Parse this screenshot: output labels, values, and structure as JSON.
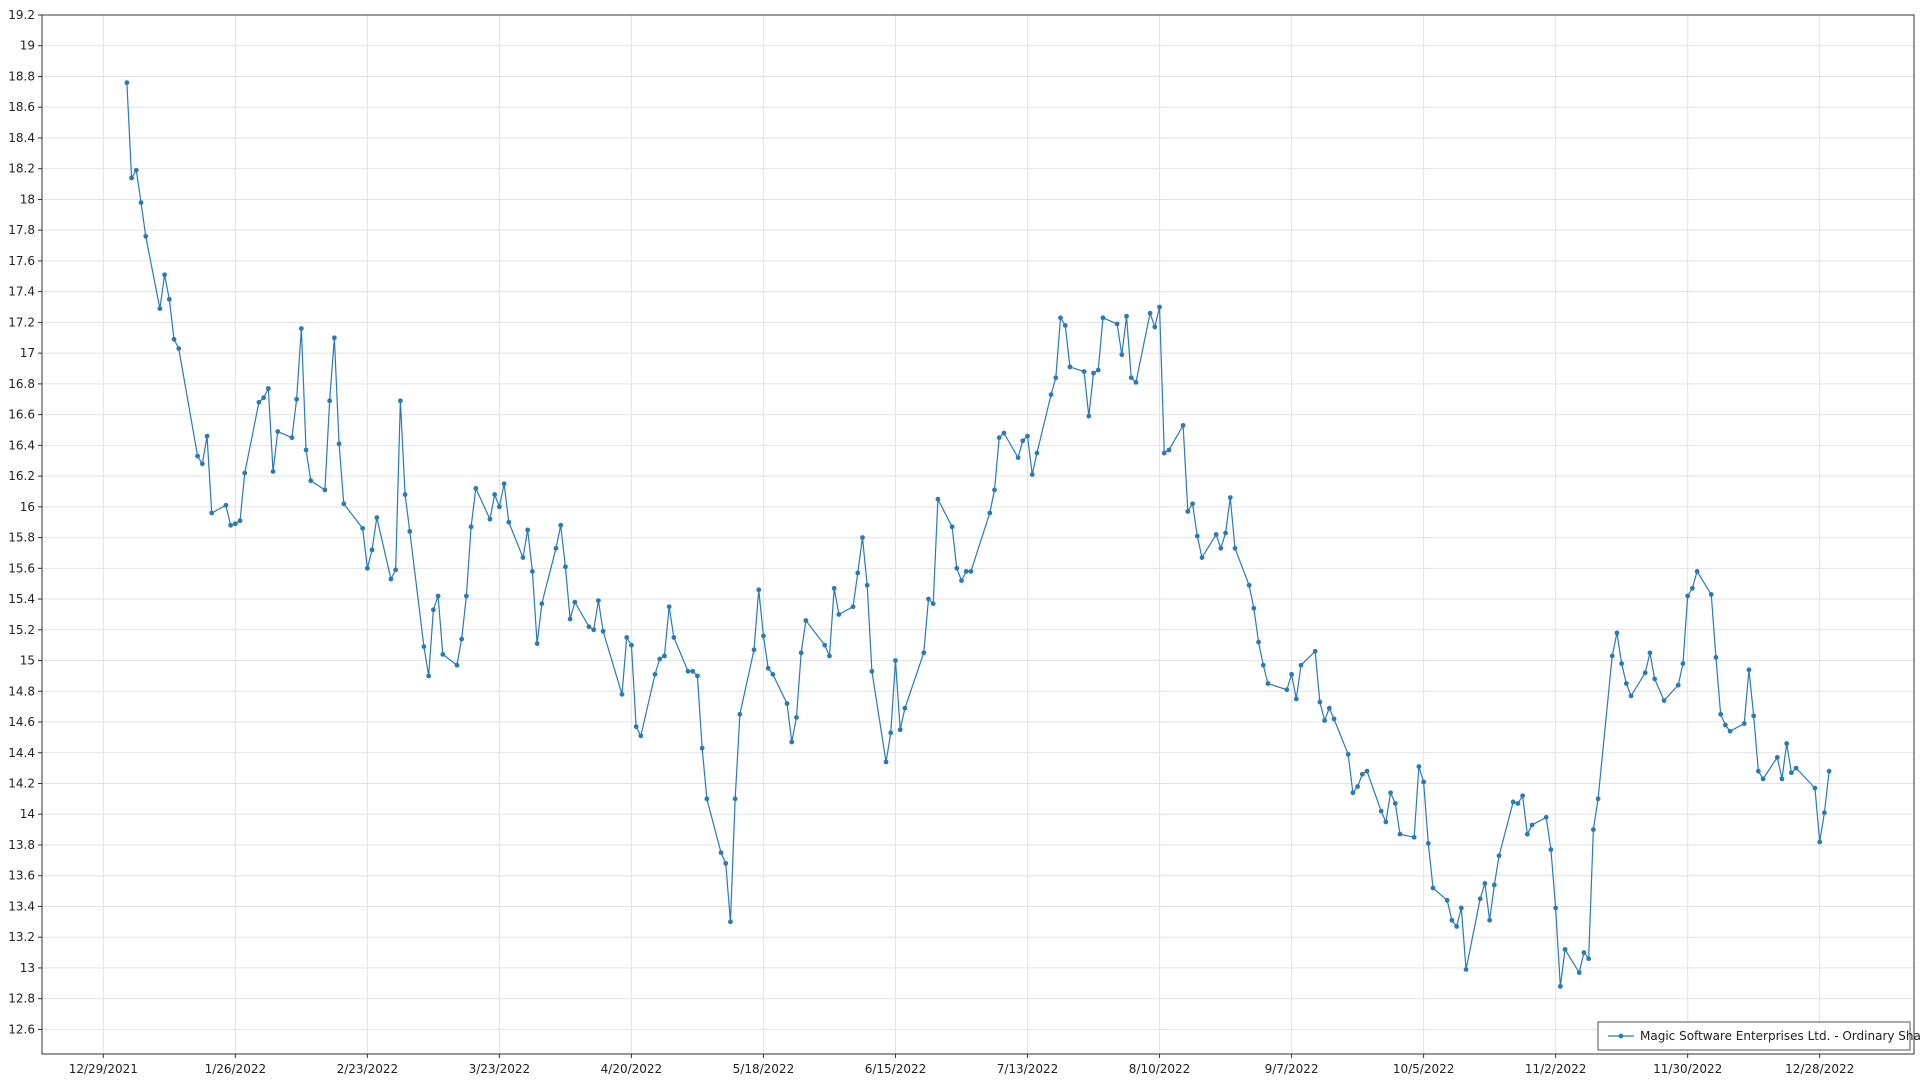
{
  "chart_data": {
    "type": "line",
    "series": [
      {
        "name": "Magic Software Enterprises Ltd. - Ordinary Shares",
        "color": "#2a7ab5",
        "x": [
          "1/3/2022",
          "1/4/2022",
          "1/5/2022",
          "1/6/2022",
          "1/7/2022",
          "1/10/2022",
          "1/11/2022",
          "1/12/2022",
          "1/13/2022",
          "1/14/2022",
          "1/18/2022",
          "1/19/2022",
          "1/20/2022",
          "1/21/2022",
          "1/24/2022",
          "1/25/2022",
          "1/26/2022",
          "1/27/2022",
          "1/28/2022",
          "1/31/2022",
          "2/1/2022",
          "2/2/2022",
          "2/3/2022",
          "2/4/2022",
          "2/7/2022",
          "2/8/2022",
          "2/9/2022",
          "2/10/2022",
          "2/11/2022",
          "2/14/2022",
          "2/15/2022",
          "2/16/2022",
          "2/17/2022",
          "2/18/2022",
          "2/22/2022",
          "2/23/2022",
          "2/24/2022",
          "2/25/2022",
          "2/28/2022",
          "3/1/2022",
          "3/2/2022",
          "3/3/2022",
          "3/4/2022",
          "3/7/2022",
          "3/8/2022",
          "3/9/2022",
          "3/10/2022",
          "3/11/2022",
          "3/14/2022",
          "3/15/2022",
          "3/16/2022",
          "3/17/2022",
          "3/18/2022",
          "3/21/2022",
          "3/22/2022",
          "3/23/2022",
          "3/24/2022",
          "3/25/2022",
          "3/28/2022",
          "3/29/2022",
          "3/30/2022",
          "3/31/2022",
          "4/1/2022",
          "4/4/2022",
          "4/5/2022",
          "4/6/2022",
          "4/7/2022",
          "4/8/2022",
          "4/11/2022",
          "4/12/2022",
          "4/13/2022",
          "4/14/2022",
          "4/18/2022",
          "4/19/2022",
          "4/20/2022",
          "4/21/2022",
          "4/22/2022",
          "4/25/2022",
          "4/26/2022",
          "4/27/2022",
          "4/28/2022",
          "4/29/2022",
          "5/2/2022",
          "5/3/2022",
          "5/4/2022",
          "5/5/2022",
          "5/6/2022",
          "5/9/2022",
          "5/10/2022",
          "5/11/2022",
          "5/12/2022",
          "5/13/2022",
          "5/16/2022",
          "5/17/2022",
          "5/18/2022",
          "5/19/2022",
          "5/20/2022",
          "5/23/2022",
          "5/24/2022",
          "5/25/2022",
          "5/26/2022",
          "5/27/2022",
          "5/31/2022",
          "6/1/2022",
          "6/2/2022",
          "6/3/2022",
          "6/6/2022",
          "6/7/2022",
          "6/8/2022",
          "6/9/2022",
          "6/10/2022",
          "6/13/2022",
          "6/14/2022",
          "6/15/2022",
          "6/16/2022",
          "6/17/2022",
          "6/21/2022",
          "6/22/2022",
          "6/23/2022",
          "6/24/2022",
          "6/27/2022",
          "6/28/2022",
          "6/29/2022",
          "6/30/2022",
          "7/1/2022",
          "7/5/2022",
          "7/6/2022",
          "7/7/2022",
          "7/8/2022",
          "7/11/2022",
          "7/12/2022",
          "7/13/2022",
          "7/14/2022",
          "7/15/2022",
          "7/18/2022",
          "7/19/2022",
          "7/20/2022",
          "7/21/2022",
          "7/22/2022",
          "7/25/2022",
          "7/26/2022",
          "7/27/2022",
          "7/28/2022",
          "7/29/2022",
          "8/1/2022",
          "8/2/2022",
          "8/3/2022",
          "8/4/2022",
          "8/5/2022",
          "8/8/2022",
          "8/9/2022",
          "8/10/2022",
          "8/11/2022",
          "8/12/2022",
          "8/15/2022",
          "8/16/2022",
          "8/17/2022",
          "8/18/2022",
          "8/19/2022",
          "8/22/2022",
          "8/23/2022",
          "8/24/2022",
          "8/25/2022",
          "8/26/2022",
          "8/29/2022",
          "8/30/2022",
          "8/31/2022",
          "9/1/2022",
          "9/2/2022",
          "9/6/2022",
          "9/7/2022",
          "9/8/2022",
          "9/9/2022",
          "9/12/2022",
          "9/13/2022",
          "9/14/2022",
          "9/15/2022",
          "9/16/2022",
          "9/19/2022",
          "9/20/2022",
          "9/21/2022",
          "9/22/2022",
          "9/23/2022",
          "9/26/2022",
          "9/27/2022",
          "9/28/2022",
          "9/29/2022",
          "9/30/2022",
          "10/3/2022",
          "10/4/2022",
          "10/5/2022",
          "10/6/2022",
          "10/7/2022",
          "10/10/2022",
          "10/11/2022",
          "10/12/2022",
          "10/13/2022",
          "10/14/2022",
          "10/17/2022",
          "10/18/2022",
          "10/19/2022",
          "10/20/2022",
          "10/21/2022",
          "10/24/2022",
          "10/25/2022",
          "10/26/2022",
          "10/27/2022",
          "10/28/2022",
          "10/31/2022",
          "11/1/2022",
          "11/2/2022",
          "11/3/2022",
          "11/4/2022",
          "11/7/2022",
          "11/8/2022",
          "11/9/2022",
          "11/10/2022",
          "11/11/2022",
          "11/14/2022",
          "11/15/2022",
          "11/16/2022",
          "11/17/2022",
          "11/18/2022",
          "11/21/2022",
          "11/22/2022",
          "11/23/2022",
          "11/25/2022",
          "11/28/2022",
          "11/29/2022",
          "11/30/2022",
          "12/1/2022",
          "12/2/2022",
          "12/5/2022",
          "12/6/2022",
          "12/7/2022",
          "12/8/2022",
          "12/9/2022",
          "12/12/2022",
          "12/13/2022",
          "12/14/2022",
          "12/15/2022",
          "12/16/2022",
          "12/19/2022",
          "12/20/2022",
          "12/21/2022",
          "12/22/2022",
          "12/23/2022",
          "12/27/2022",
          "12/28/2022",
          "12/29/2022",
          "12/30/2022"
        ],
        "values": [
          18.76,
          18.14,
          18.19,
          17.98,
          17.76,
          17.29,
          17.51,
          17.35,
          17.09,
          17.03,
          16.33,
          16.28,
          16.46,
          15.96,
          16.01,
          15.88,
          15.89,
          15.91,
          16.22,
          16.68,
          16.71,
          16.77,
          16.23,
          16.49,
          16.45,
          16.7,
          17.16,
          16.37,
          16.17,
          16.11,
          16.69,
          17.1,
          16.41,
          16.02,
          15.86,
          15.6,
          15.72,
          15.93,
          15.53,
          15.59,
          16.69,
          16.08,
          15.84,
          15.09,
          14.9,
          15.33,
          15.42,
          15.04,
          14.97,
          15.14,
          15.42,
          15.87,
          16.12,
          15.92,
          16.08,
          16.0,
          16.15,
          15.9,
          15.67,
          15.85,
          15.58,
          15.11,
          15.37,
          15.73,
          15.88,
          15.61,
          15.27,
          15.38,
          15.22,
          15.2,
          15.39,
          15.19,
          14.78,
          15.15,
          15.1,
          14.57,
          14.51,
          14.91,
          15.01,
          15.03,
          15.35,
          15.15,
          14.93,
          14.93,
          14.9,
          14.43,
          14.1,
          13.75,
          13.68,
          13.3,
          14.1,
          14.65,
          15.07,
          15.46,
          15.16,
          14.95,
          14.91,
          14.72,
          14.47,
          14.63,
          15.05,
          15.26,
          15.1,
          15.03,
          15.47,
          15.3,
          15.35,
          15.57,
          15.8,
          15.49,
          14.93,
          14.34,
          14.53,
          15.0,
          14.55,
          14.69,
          15.05,
          15.4,
          15.37,
          16.05,
          15.87,
          15.6,
          15.52,
          15.58,
          15.58,
          15.96,
          16.11,
          16.45,
          16.48,
          16.32,
          16.43,
          16.46,
          16.21,
          16.35,
          16.73,
          16.84,
          17.23,
          17.18,
          16.91,
          16.88,
          16.59,
          16.87,
          16.89,
          17.23,
          17.19,
          16.99,
          17.24,
          16.84,
          16.81,
          17.26,
          17.17,
          17.3,
          16.35,
          16.37,
          16.53,
          15.97,
          16.02,
          15.81,
          15.67,
          15.82,
          15.73,
          15.83,
          16.06,
          15.73,
          15.49,
          15.34,
          15.12,
          14.97,
          14.85,
          14.81,
          14.91,
          14.75,
          14.97,
          15.06,
          14.73,
          14.61,
          14.69,
          14.62,
          14.39,
          14.14,
          14.18,
          14.26,
          14.28,
          14.02,
          13.95,
          14.14,
          14.07,
          13.87,
          13.85,
          14.31,
          14.21,
          13.81,
          13.52,
          13.44,
          13.31,
          13.27,
          13.39,
          12.99,
          13.45,
          13.55,
          13.31,
          13.54,
          13.73,
          14.08,
          14.07,
          14.12,
          13.87,
          13.93,
          13.98,
          13.77,
          13.39,
          12.88,
          13.12,
          12.97,
          13.1,
          13.06,
          13.9,
          14.1,
          15.03,
          15.18,
          14.98,
          14.85,
          14.77,
          14.92,
          15.05,
          14.88,
          14.74,
          14.84,
          14.98,
          15.42,
          15.47,
          15.58,
          15.43,
          15.02,
          14.65,
          14.58,
          14.54,
          14.59,
          14.94,
          14.64,
          14.28,
          14.23,
          14.37,
          14.23,
          14.46,
          14.27,
          14.3,
          14.17,
          13.82,
          14.01,
          14.28
        ]
      }
    ],
    "xlim": [
      "12/16/2021",
      "1/17/2023"
    ],
    "xticks": [
      "12/29/2021",
      "1/26/2022",
      "2/23/2022",
      "3/23/2022",
      "4/20/2022",
      "5/18/2022",
      "6/15/2022",
      "7/13/2022",
      "8/10/2022",
      "9/7/2022",
      "10/5/2022",
      "11/2/2022",
      "11/30/2022",
      "12/28/2022"
    ],
    "ylim": [
      12.44,
      19.2
    ],
    "yticks": [
      12.6,
      12.8,
      13,
      13.2,
      13.4,
      13.6,
      13.8,
      14,
      14.2,
      14.4,
      14.6,
      14.8,
      15,
      15.2,
      15.4,
      15.6,
      15.8,
      16,
      16.2,
      16.4,
      16.6,
      16.8,
      17,
      17.2,
      17.4,
      17.6,
      17.8,
      18,
      18.2,
      18.4,
      18.6,
      18.8,
      19,
      19.2
    ],
    "grid": true,
    "markers": true,
    "legend": "lower right"
  }
}
